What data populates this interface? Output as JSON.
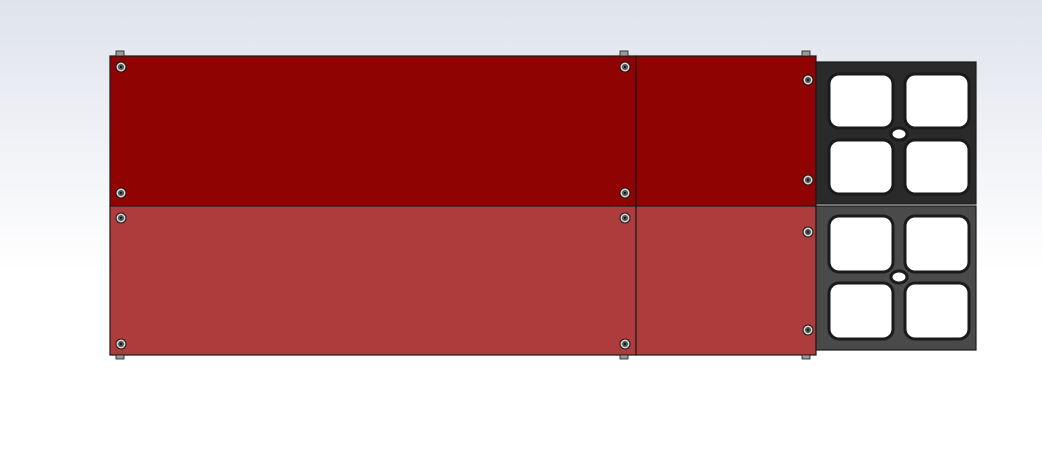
{
  "viewport": {
    "background_top": "#dfe3ec",
    "background_bottom": "#ffffff"
  },
  "model": {
    "upper_row": {
      "panel_color": "#8f0303",
      "panel_shade": "#7f0202",
      "bracket_color": "#2a2a2a",
      "bracket_window_color": "#ffffff"
    },
    "lower_row": {
      "panel_color": "#ae3c3c",
      "panel_shade": "#a13434",
      "bracket_color": "#4a4a4a",
      "bracket_window_color": "#ffffff"
    },
    "edge_color": "#1a1a1a",
    "screw_color": "#555555",
    "screw_icon": "hex-socket-screw-icon",
    "bracket_windows_per_bracket": 4,
    "center_holes_per_bracket": 1
  }
}
